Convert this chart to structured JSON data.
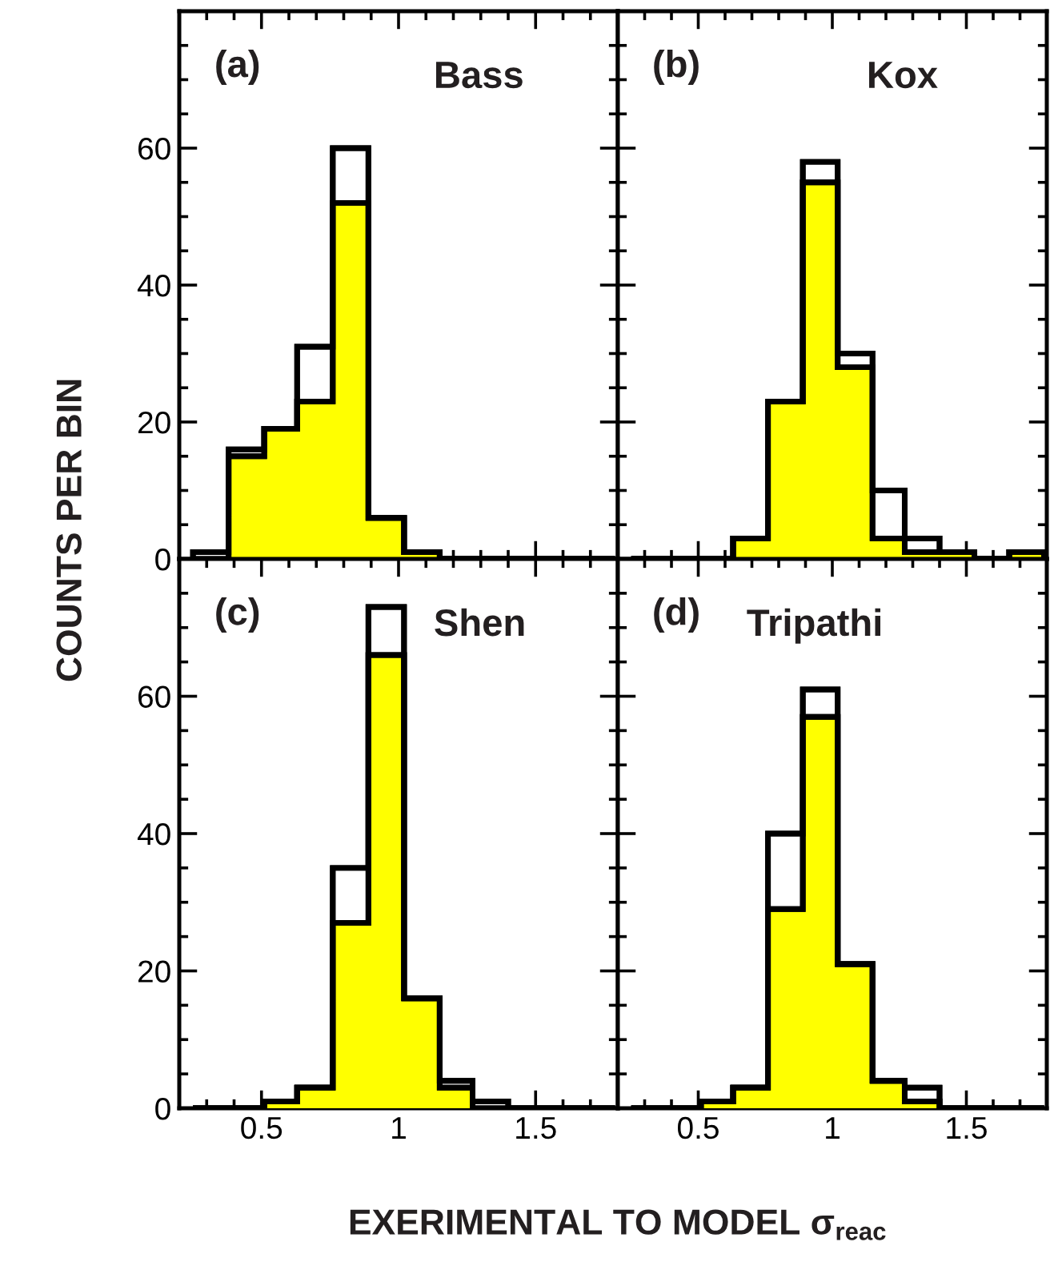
{
  "chart_data": [
    {
      "type": "histogram",
      "title": "Bass",
      "annotations": [
        "(a)"
      ],
      "ylabel": "COUNTS PER BIN",
      "bins": [
        0.25,
        0.38,
        0.51,
        0.63,
        0.76,
        0.89,
        1.02,
        1.15,
        1.27,
        1.4,
        1.53,
        1.66,
        1.79
      ],
      "xlim": [
        0.2,
        1.8
      ],
      "ylim": [
        0,
        80
      ],
      "xticks": [
        0.5,
        1,
        1.5
      ],
      "yticks": [
        0,
        20,
        40,
        60
      ],
      "tick_labels": "y",
      "series": [
        {
          "color": "#ffffff",
          "values": [
            1,
            16,
            19,
            31,
            60,
            6,
            1,
            0,
            0,
            0,
            0,
            0
          ]
        },
        {
          "color": "#ffff00",
          "values": [
            0,
            15,
            19,
            23,
            52,
            6,
            1,
            0,
            0,
            0,
            0,
            0
          ]
        }
      ]
    },
    {
      "type": "histogram",
      "title": "Kox",
      "annotations": [
        "(b)"
      ],
      "bins": [
        0.25,
        0.38,
        0.51,
        0.63,
        0.76,
        0.89,
        1.02,
        1.15,
        1.27,
        1.4,
        1.53,
        1.66,
        1.79
      ],
      "xlim": [
        0.2,
        1.8
      ],
      "ylim": [
        0,
        80
      ],
      "xticks": [
        0.5,
        1,
        1.5
      ],
      "yticks": [
        0,
        20,
        40,
        60
      ],
      "tick_labels": false,
      "series": [
        {
          "color": "#ffffff",
          "values": [
            0,
            0,
            0,
            3,
            23,
            58,
            30,
            10,
            3,
            1,
            0,
            1
          ]
        },
        {
          "color": "#ffff00",
          "values": [
            0,
            0,
            0,
            3,
            23,
            55,
            28,
            3,
            1,
            1,
            0,
            1
          ]
        }
      ]
    },
    {
      "type": "histogram",
      "title": "Shen",
      "annotations": [
        "(c)"
      ],
      "xlabel": "EXERIMENTAL TO MODEL σ$_{reac}$",
      "bins": [
        0.25,
        0.38,
        0.51,
        0.63,
        0.76,
        0.89,
        1.02,
        1.15,
        1.27,
        1.4,
        1.53,
        1.66,
        1.79
      ],
      "xlim": [
        0.2,
        1.8
      ],
      "ylim": [
        0,
        80
      ],
      "xticks": [
        0.5,
        1,
        1.5
      ],
      "yticks": [
        0,
        20,
        40,
        60
      ],
      "series": [
        {
          "color": "#ffffff",
          "values": [
            0,
            0,
            1,
            3,
            35,
            73,
            16,
            4,
            1,
            0,
            0,
            0
          ]
        },
        {
          "color": "#ffff00",
          "values": [
            0,
            0,
            1,
            3,
            27,
            66,
            16,
            3,
            0,
            0,
            0,
            0
          ]
        }
      ]
    },
    {
      "type": "histogram",
      "title": "Tripathi",
      "annotations": [
        "(d)"
      ],
      "bins": [
        0.25,
        0.38,
        0.51,
        0.63,
        0.76,
        0.89,
        1.02,
        1.15,
        1.27,
        1.4,
        1.53,
        1.66,
        1.79
      ],
      "xlim": [
        0.2,
        1.8
      ],
      "ylim": [
        0,
        80
      ],
      "xticks": [
        0.5,
        1,
        1.5
      ],
      "yticks": [
        0,
        20,
        40,
        60
      ],
      "tick_labels": "x",
      "series": [
        {
          "color": "#ffffff",
          "values": [
            0,
            0,
            1,
            3,
            40,
            61,
            21,
            4,
            3,
            0,
            0,
            0
          ]
        },
        {
          "color": "#ffff00",
          "values": [
            0,
            0,
            1,
            3,
            29,
            57,
            21,
            4,
            1,
            0,
            0,
            0
          ]
        }
      ]
    }
  ]
}
